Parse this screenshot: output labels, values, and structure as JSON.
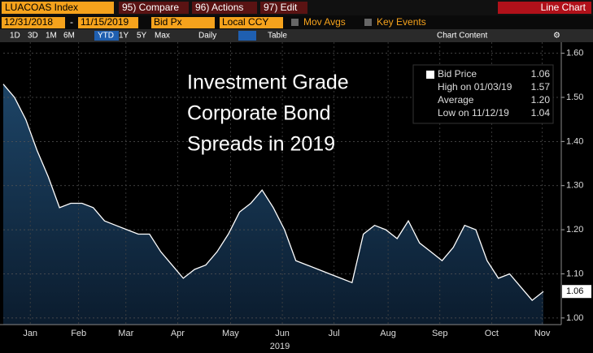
{
  "header": {
    "ticker": "LUACOAS Index",
    "compare": "95) Compare",
    "actions": "96) Actions",
    "edit": "97) Edit",
    "view": "Line Chart",
    "start_date": "12/31/2018",
    "dash": "-",
    "end_date": "11/15/2019",
    "field": "Bid Px",
    "currency": "Local CCY",
    "mov_avgs": "Mov Avgs",
    "key_events": "Key Events",
    "periods": [
      "1D",
      "3D",
      "1M",
      "6M",
      "YTD",
      "1Y",
      "5Y",
      "Max"
    ],
    "frequency": "Daily",
    "table": "Table",
    "chart_content": "Chart Content"
  },
  "chart_data": {
    "type": "area",
    "annotation": [
      "Investment Grade",
      "Corporate Bond",
      "Spreads in 2019"
    ],
    "legend": [
      [
        "Bid Price",
        "1.06"
      ],
      [
        "High on 01/03/19",
        "1.57"
      ],
      [
        "Average",
        "1.20"
      ],
      [
        "Low on 11/12/19",
        "1.04"
      ]
    ],
    "last_value_label": "1.06",
    "year_label": "2019",
    "series": [
      {
        "name": "Bid Price",
        "color": "#ffffff",
        "values": [
          1.53,
          1.5,
          1.45,
          1.38,
          1.32,
          1.25,
          1.26,
          1.26,
          1.25,
          1.22,
          1.21,
          1.2,
          1.19,
          1.19,
          1.15,
          1.12,
          1.09,
          1.11,
          1.12,
          1.15,
          1.19,
          1.24,
          1.26,
          1.29,
          1.25,
          1.2,
          1.13,
          1.12,
          1.11,
          1.1,
          1.09,
          1.08,
          1.19,
          1.21,
          1.2,
          1.18,
          1.22,
          1.17,
          1.15,
          1.13,
          1.16,
          1.21,
          1.2,
          1.13,
          1.09,
          1.1,
          1.07,
          1.04,
          1.06
        ]
      }
    ],
    "xlim": [
      0,
      48
    ],
    "xticks": [
      {
        "value": 2.4,
        "label": "Jan"
      },
      {
        "value": 6.7,
        "label": "Feb"
      },
      {
        "value": 10.9,
        "label": "Mar"
      },
      {
        "value": 15.5,
        "label": "Apr"
      },
      {
        "value": 20.2,
        "label": "May"
      },
      {
        "value": 24.8,
        "label": "Jun"
      },
      {
        "value": 29.4,
        "label": "Jul"
      },
      {
        "value": 34.2,
        "label": "Aug"
      },
      {
        "value": 38.8,
        "label": "Sep"
      },
      {
        "value": 43.4,
        "label": "Oct"
      },
      {
        "value": 47.9,
        "label": "Nov"
      }
    ],
    "ylim": [
      0.985,
      1.625
    ],
    "yticks": [
      {
        "value": 1.0,
        "label": "1.00"
      },
      {
        "value": 1.1,
        "label": "1.10"
      },
      {
        "value": 1.2,
        "label": "1.20"
      },
      {
        "value": 1.3,
        "label": "1.30"
      },
      {
        "value": 1.4,
        "label": "1.40"
      },
      {
        "value": 1.5,
        "label": "1.50"
      },
      {
        "value": 1.6,
        "label": "1.60"
      }
    ],
    "grid": true
  }
}
